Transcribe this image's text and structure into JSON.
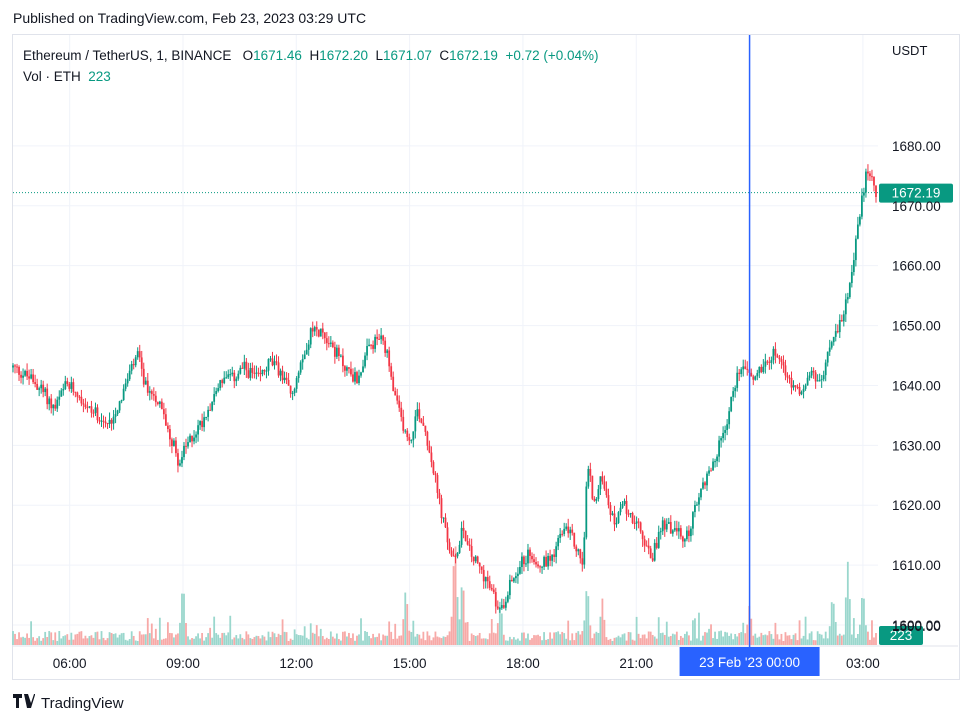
{
  "header": {
    "published": "Published on TradingView.com, Feb 23, 2023 03:29 UTC"
  },
  "legend": {
    "symbol": "Ethereum / TetherUS, 1, BINANCE",
    "o_label": "O",
    "o_value": "1671.46",
    "h_label": "H",
    "h_value": "1672.20",
    "l_label": "L",
    "l_value": "1671.07",
    "c_label": "C",
    "c_value": "1672.19",
    "change": "+0.72 (+0.04%)",
    "vol_label": "Vol · ETH",
    "vol_value": "223"
  },
  "colors": {
    "up": "#089981",
    "down": "#f23645",
    "vol_up": "#9ad7cd",
    "vol_down": "#f7a9a7",
    "crosshair": "#2962ff",
    "grid": "#f0f3fa",
    "last_price_line": "#089981"
  },
  "footer": {
    "brand": "TradingView"
  },
  "chart_data": {
    "type": "candlestick",
    "title": "Ethereum / TetherUS, 1, BINANCE",
    "currency": "USDT",
    "y_ticks": [
      "1600.00",
      "1610.00",
      "1620.00",
      "1630.00",
      "1640.00",
      "1650.00",
      "1660.00",
      "1670.00",
      "1680.00"
    ],
    "y_tick_values": [
      1600,
      1610,
      1620,
      1630,
      1640,
      1650,
      1660,
      1670,
      1680
    ],
    "x_ticks": [
      "06:00",
      "09:00",
      "12:00",
      "15:00",
      "18:00",
      "21:00",
      "03:00"
    ],
    "x_tick_hours": [
      6,
      9,
      12,
      15,
      18,
      21,
      27
    ],
    "x_range_hours": [
      4.5,
      27.4
    ],
    "y_range": [
      1597.5,
      1688.5
    ],
    "grid": true,
    "last_price": 1672.19,
    "last_price_label": "1672.19",
    "last_volume_label": "223",
    "crosshair": {
      "x_hour": 24.0,
      "label": "23 Feb '23   00:00"
    },
    "price_path": [
      [
        4.5,
        1643
      ],
      [
        5.0,
        1641
      ],
      [
        5.3,
        1639
      ],
      [
        5.6,
        1636
      ],
      [
        5.9,
        1640
      ],
      [
        6.2,
        1639
      ],
      [
        6.5,
        1636
      ],
      [
        6.8,
        1635
      ],
      [
        7.0,
        1633
      ],
      [
        7.3,
        1637
      ],
      [
        7.6,
        1642
      ],
      [
        7.8,
        1645
      ],
      [
        8.0,
        1640
      ],
      [
        8.3,
        1638
      ],
      [
        8.6,
        1633
      ],
      [
        8.8,
        1629
      ],
      [
        8.9,
        1627
      ],
      [
        9.1,
        1630
      ],
      [
        9.5,
        1634
      ],
      [
        9.8,
        1638
      ],
      [
        10.0,
        1641
      ],
      [
        10.3,
        1641
      ],
      [
        10.6,
        1643
      ],
      [
        11.0,
        1641
      ],
      [
        11.3,
        1644
      ],
      [
        11.6,
        1642
      ],
      [
        11.9,
        1638
      ],
      [
        12.1,
        1644
      ],
      [
        12.4,
        1649
      ],
      [
        12.7,
        1649
      ],
      [
        13.0,
        1646
      ],
      [
        13.3,
        1643
      ],
      [
        13.6,
        1641
      ],
      [
        13.9,
        1646
      ],
      [
        14.2,
        1648
      ],
      [
        14.4,
        1645
      ],
      [
        14.6,
        1638
      ],
      [
        14.8,
        1634
      ],
      [
        15.0,
        1630
      ],
      [
        15.2,
        1636
      ],
      [
        15.4,
        1633
      ],
      [
        15.6,
        1627
      ],
      [
        15.8,
        1620
      ],
      [
        16.0,
        1614
      ],
      [
        16.2,
        1610
      ],
      [
        16.4,
        1617
      ],
      [
        16.6,
        1612
      ],
      [
        16.8,
        1610
      ],
      [
        17.0,
        1608
      ],
      [
        17.2,
        1605
      ],
      [
        17.4,
        1602
      ],
      [
        17.6,
        1606
      ],
      [
        17.9,
        1610
      ],
      [
        18.2,
        1612
      ],
      [
        18.5,
        1610
      ],
      [
        18.8,
        1612
      ],
      [
        19.0,
        1615
      ],
      [
        19.2,
        1616
      ],
      [
        19.4,
        1613
      ],
      [
        19.6,
        1610
      ],
      [
        19.7,
        1627
      ],
      [
        19.9,
        1620
      ],
      [
        20.1,
        1625
      ],
      [
        20.4,
        1617
      ],
      [
        20.7,
        1620
      ],
      [
        21.0,
        1617
      ],
      [
        21.2,
        1614
      ],
      [
        21.4,
        1611
      ],
      [
        21.7,
        1617
      ],
      [
        22.0,
        1616
      ],
      [
        22.3,
        1614
      ],
      [
        22.5,
        1618
      ],
      [
        22.8,
        1624
      ],
      [
        23.1,
        1628
      ],
      [
        23.4,
        1634
      ],
      [
        23.6,
        1640
      ],
      [
        23.8,
        1644
      ],
      [
        24.1,
        1641
      ],
      [
        24.4,
        1644
      ],
      [
        24.7,
        1646
      ],
      [
        25.0,
        1641
      ],
      [
        25.3,
        1639
      ],
      [
        25.6,
        1642
      ],
      [
        25.9,
        1640
      ],
      [
        26.1,
        1646
      ],
      [
        26.4,
        1650
      ],
      [
        26.7,
        1658
      ],
      [
        26.9,
        1668
      ],
      [
        27.1,
        1676
      ],
      [
        27.35,
        1672.19
      ]
    ],
    "volume_spikes": [
      [
        9.0,
        0.55
      ],
      [
        14.9,
        0.5
      ],
      [
        16.2,
        0.95
      ],
      [
        16.4,
        0.6
      ],
      [
        17.4,
        0.4
      ],
      [
        19.7,
        0.55
      ],
      [
        20.1,
        0.4
      ],
      [
        24.0,
        0.35
      ],
      [
        26.2,
        0.45
      ],
      [
        26.6,
        0.7
      ],
      [
        27.0,
        0.5
      ]
    ],
    "volume_ticks": [
      "1590.00"
    ]
  }
}
